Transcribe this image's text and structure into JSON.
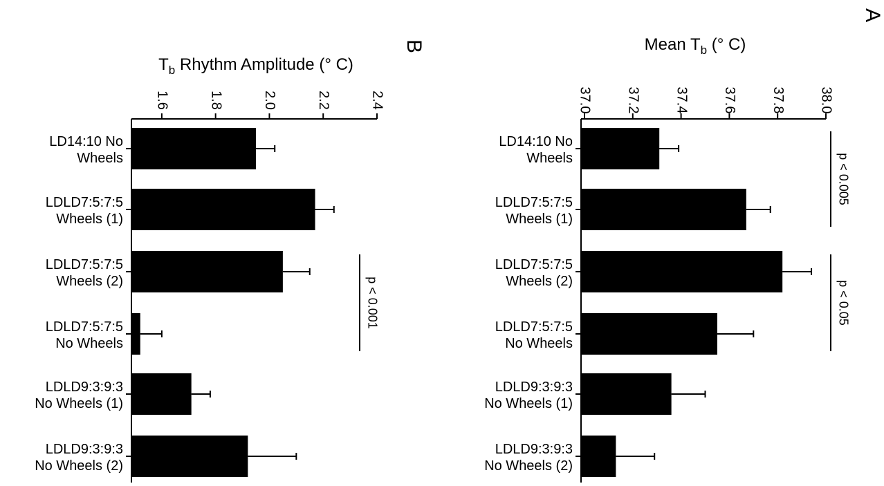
{
  "chart_data": [
    {
      "panel": "A",
      "type": "bar",
      "orientation": "horizontal",
      "xlabel": "Mean T",
      "xlabel_sub": "b",
      "xlabel_unit": " (° C)",
      "xlim": [
        37.0,
        38.0
      ],
      "ticks": [
        "37.0",
        "37.2",
        "37.4",
        "37.6",
        "37.8",
        "38.0"
      ],
      "tick_values": [
        37.0,
        37.2,
        37.4,
        37.6,
        37.8,
        38.0
      ],
      "categories": [
        [
          "LD14:10 No",
          "Wheels"
        ],
        [
          "LDLD7:5:7:5",
          "Wheels (1)"
        ],
        [
          "LDLD7:5:7:5",
          "Wheels (2)"
        ],
        [
          "LDLD7:5:7:5",
          "No Wheels"
        ],
        [
          "LDLD9:3:9:3",
          "No Wheels (1)"
        ],
        [
          "LDLD9:3:9:3",
          "No Wheels (2)"
        ]
      ],
      "values": [
        37.31,
        37.67,
        37.82,
        37.55,
        37.36,
        37.13
      ],
      "errors": [
        0.08,
        0.1,
        0.12,
        0.15,
        0.14,
        0.16
      ],
      "annotations": [
        {
          "text": "p < 0.005",
          "from": 0,
          "to": 1
        },
        {
          "text": "p < 0.05",
          "from": 2,
          "to": 3
        }
      ]
    },
    {
      "panel": "B",
      "type": "bar",
      "orientation": "horizontal",
      "xlabel": "T",
      "xlabel_sub": "b",
      "xlabel_unit": " Rhythm Amplitude (° C)",
      "xlim": [
        1.5,
        2.4
      ],
      "ticks": [
        "1.6",
        "1.8",
        "2.0",
        "2.2",
        "2.4"
      ],
      "tick_values": [
        1.6,
        1.8,
        2.0,
        2.2,
        2.4
      ],
      "categories": [
        [
          "LD14:10 No",
          "Wheels"
        ],
        [
          "LDLD7:5:7:5",
          "Wheels (1)"
        ],
        [
          "LDLD7:5:7:5",
          "Wheels (2)"
        ],
        [
          "LDLD7:5:7:5",
          "No Wheels"
        ],
        [
          "LDLD9:3:9:3",
          "No Wheels (1)"
        ],
        [
          "LDLD9:3:9:3",
          "No Wheels (2)"
        ]
      ],
      "values": [
        1.95,
        2.17,
        2.05,
        1.52,
        1.71,
        1.92
      ],
      "errors": [
        0.07,
        0.07,
        0.1,
        0.08,
        0.07,
        0.18
      ],
      "annotations": [
        {
          "text": "p < 0.001",
          "from": 2,
          "to": 3
        }
      ]
    }
  ]
}
